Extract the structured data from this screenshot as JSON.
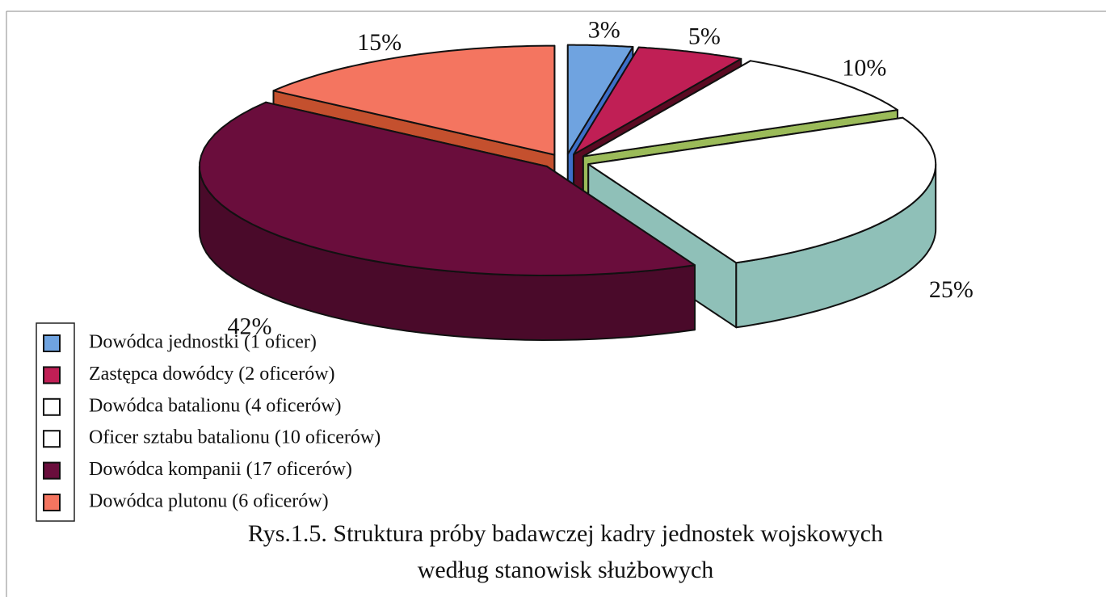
{
  "chart_data": {
    "type": "pie",
    "title": [
      "Rys.1.5. Struktura próby badawczej kadry jednostek wojskowych",
      "według stanowisk służbowych"
    ],
    "categories": [
      "Dowódca jednostki (1 oficer)",
      "Zastępca dowódcy (2 oficerów)",
      "Dowódca batalionu (4 oficerów)",
      "Oficer sztabu batalionu (10 oficerów)",
      "Dowódca kompanii (17 oficerów)",
      "Dowódca plutonu (6 oficerów)"
    ],
    "values": [
      3,
      5,
      10,
      25,
      42,
      15
    ],
    "value_labels": [
      "3%",
      "5%",
      "10%",
      "25%",
      "42%",
      "15%"
    ],
    "colors": [
      "#6fa3e0",
      "#c01f55",
      "#ffffff",
      "#ffffff",
      "#6a0d3c",
      "#f47560"
    ],
    "side_colors": [
      "#3d6fc8",
      "#5a0a22",
      "#9bbb59",
      "#8fc0b8",
      "#4a0a2a",
      "#c4502e"
    ]
  }
}
